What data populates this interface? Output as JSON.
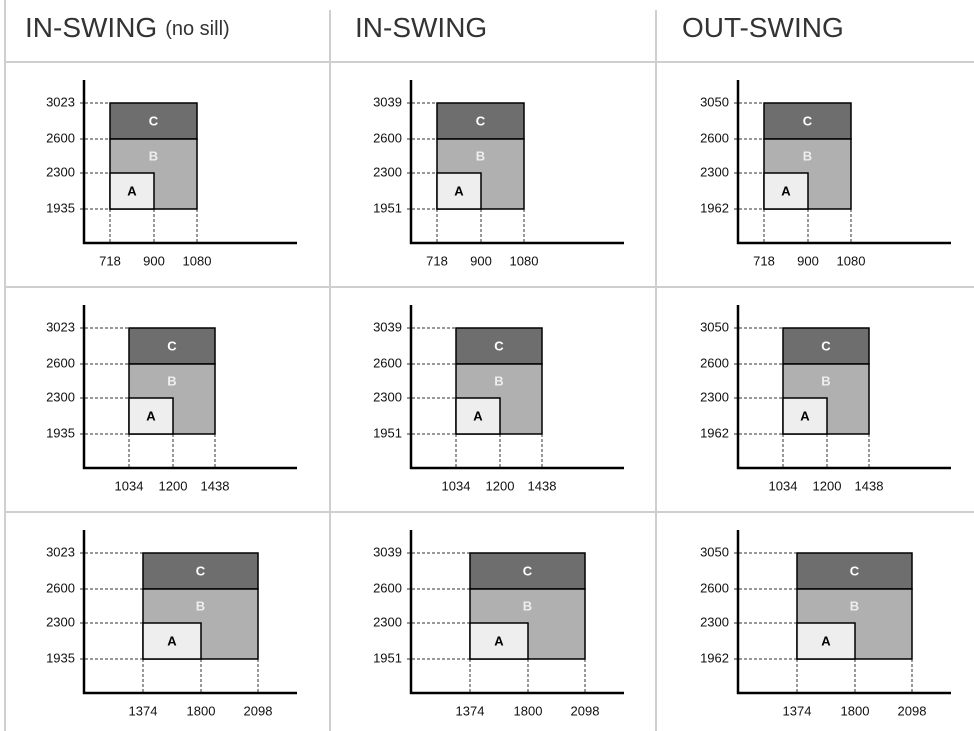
{
  "headers": [
    {
      "title": "IN-SWING",
      "note": "(no sill)"
    },
    {
      "title": "IN-SWING"
    },
    {
      "title": "OUT-SWING"
    }
  ],
  "box_labels": {
    "a": "A",
    "b": "B",
    "c": "C"
  },
  "rows": [
    {
      "cells": [
        {
          "y_labels": [
            3023,
            2600,
            2300,
            1935
          ],
          "x_labels": [
            718,
            900,
            1080
          ]
        },
        {
          "y_labels": [
            3039,
            2600,
            2300,
            1951
          ],
          "x_labels": [
            718,
            900,
            1080
          ]
        },
        {
          "y_labels": [
            3050,
            2600,
            2300,
            1962
          ],
          "x_labels": [
            718,
            900,
            1080
          ]
        }
      ]
    },
    {
      "cells": [
        {
          "y_labels": [
            3023,
            2600,
            2300,
            1935
          ],
          "x_labels": [
            1034,
            1200,
            1438
          ]
        },
        {
          "y_labels": [
            3039,
            2600,
            2300,
            1951
          ],
          "x_labels": [
            1034,
            1200,
            1438
          ]
        },
        {
          "y_labels": [
            3050,
            2600,
            2300,
            1962
          ],
          "x_labels": [
            1034,
            1200,
            1438
          ]
        }
      ]
    },
    {
      "cells": [
        {
          "y_labels": [
            3023,
            2600,
            2300,
            1935
          ],
          "x_labels": [
            1374,
            1800,
            2098
          ]
        },
        {
          "y_labels": [
            3039,
            2600,
            2300,
            1951
          ],
          "x_labels": [
            1374,
            1800,
            2098
          ]
        },
        {
          "y_labels": [
            3050,
            2600,
            2300,
            1962
          ],
          "x_labels": [
            1374,
            1800,
            2098
          ]
        }
      ]
    }
  ]
}
